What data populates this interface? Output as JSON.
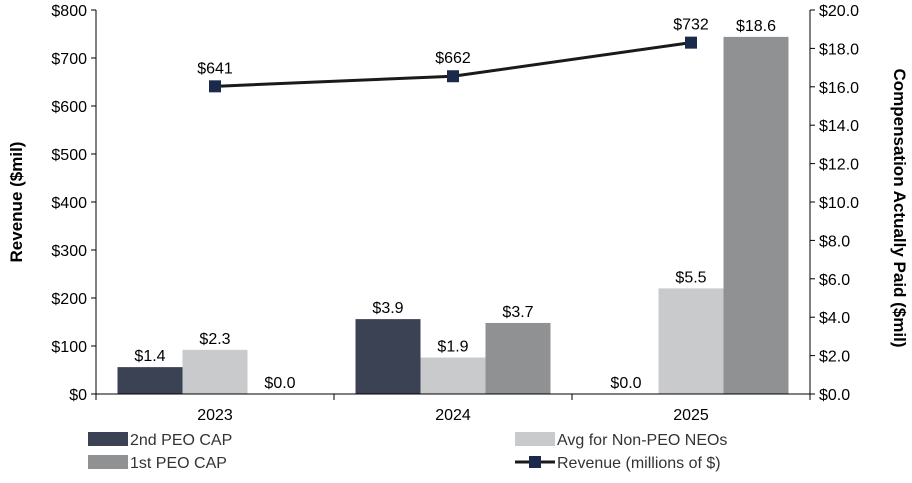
{
  "chart_data": {
    "type": "bar",
    "categories": [
      "2023",
      "2024",
      "2025"
    ],
    "series": [
      {
        "name": "2nd PEO CAP",
        "axis": "right",
        "color": "#3b4254",
        "values": [
          1.4,
          3.9,
          0.0
        ],
        "labels": [
          "$1.4",
          "$3.9",
          "$0.0"
        ]
      },
      {
        "name": "Avg for Non-PEO NEOs",
        "axis": "right",
        "color": "#c9cacc",
        "values": [
          2.3,
          1.9,
          5.5
        ],
        "labels": [
          "$2.3",
          "$1.9",
          "$5.5"
        ]
      },
      {
        "name": "1st PEO CAP",
        "axis": "right",
        "color": "#8f9193",
        "values": [
          0.0,
          3.7,
          18.6
        ],
        "labels": [
          "$0.0",
          "$3.7",
          "$18.6"
        ]
      }
    ],
    "line": {
      "name": "Revenue (millions of $)",
      "type": "line",
      "axis": "left",
      "color": "#1a1a1a",
      "marker_color": "#1b2a4a",
      "values": [
        641,
        662,
        732
      ],
      "labels": [
        "$641",
        "$662",
        "$732"
      ]
    },
    "left_axis": {
      "title": "Revenue ($mil)",
      "ylim": [
        0,
        800
      ],
      "ticks": [
        0,
        100,
        200,
        300,
        400,
        500,
        600,
        700,
        800
      ],
      "tick_labels": [
        "$0",
        "$100",
        "$200",
        "$300",
        "$400",
        "$500",
        "$600",
        "$700",
        "$800"
      ]
    },
    "right_axis": {
      "title": "Compensation Actually Paid ($mil)",
      "ylim": [
        0,
        20
      ],
      "ticks": [
        0,
        2,
        4,
        6,
        8,
        10,
        12,
        14,
        16,
        18,
        20
      ],
      "tick_labels": [
        "$0.0",
        "$2.0",
        "$4.0",
        "$6.0",
        "$8.0",
        "$10.0",
        "$12.0",
        "$14.0",
        "$16.0",
        "$18.0",
        "$20.0"
      ]
    },
    "legend": {
      "placement": "bottom",
      "entries": [
        {
          "label": "2nd PEO CAP",
          "kind": "bar",
          "series": "2nd PEO CAP"
        },
        {
          "label": "Avg for Non-PEO NEOs",
          "kind": "bar",
          "series": "Avg for Non-PEO NEOs"
        },
        {
          "label": "1st PEO CAP",
          "kind": "bar",
          "series": "1st PEO CAP"
        },
        {
          "label": "Revenue (millions of $)",
          "kind": "line",
          "series": "Revenue (millions of $)"
        }
      ]
    },
    "grid": false
  }
}
